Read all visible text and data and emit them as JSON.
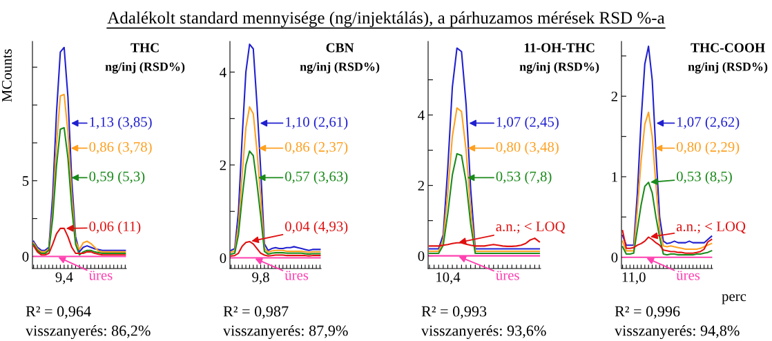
{
  "chart_data": [
    {
      "type": "line",
      "title": "THC",
      "subtitle": "ng/inj (RSD%)",
      "ylabel": "MCounts",
      "legend": "right",
      "ylim": [
        -0.8,
        14.2
      ],
      "yticks": [
        0,
        {
          "value": 2.5,
          "label": null
        },
        5,
        {
          "value": 7.5,
          "label": null
        },
        {
          "value": 10,
          "label": null
        },
        {
          "value": 12.5,
          "label": null
        }
      ],
      "categories": [
        null,
        null,
        null,
        null,
        null,
        null,
        null,
        null,
        "9,4",
        null,
        null,
        null,
        null,
        null,
        null,
        null,
        null,
        null,
        null,
        null,
        null,
        null,
        null,
        null,
        null
      ],
      "series": [
        {
          "name": "1,13 (3,85)",
          "color": "#2020d0",
          "values": [
            1.0,
            0.6,
            0.4,
            0.4,
            0.6,
            4,
            9.5,
            13.5,
            13.8,
            10.5,
            5,
            1.3,
            0.3,
            0.6,
            0.7,
            0.6,
            0.5,
            0.45,
            0.4,
            0.4,
            0.4,
            0.4,
            0.4,
            0.4,
            0.4
          ]
        },
        {
          "name": "0,86 (3,78)",
          "color": "#ffa020",
          "values": [
            0.9,
            0.5,
            0.3,
            0.3,
            0.5,
            3,
            7.4,
            10.6,
            10.7,
            8.2,
            4,
            1,
            0.45,
            0.9,
            1.0,
            0.85,
            0.6,
            0.35,
            0.3,
            0.3,
            0.3,
            0.3,
            0.3,
            0.3,
            0.3
          ]
        },
        {
          "name": "0,59 (5,3)",
          "color": "#1a8a1a",
          "values": [
            0.8,
            0.4,
            0.2,
            0.2,
            0.4,
            2.5,
            6,
            8.4,
            8.5,
            6.5,
            3.2,
            0.8,
            0.1,
            0.3,
            0.4,
            0.4,
            0.3,
            0.25,
            0.2,
            0.2,
            0.2,
            0.2,
            0.2,
            0.2,
            0.2
          ]
        },
        {
          "name": "0,06 (11)",
          "color": "#e01010",
          "values": [
            0.7,
            0.3,
            0.1,
            0.1,
            0.2,
            0.8,
            1.5,
            1.85,
            1.85,
            1.3,
            0.6,
            0.2,
            0.2,
            0.2,
            0.3,
            0.3,
            0.2,
            0.15,
            0.1,
            0.1,
            0.1,
            0.1,
            0.1,
            0.1,
            0.1
          ]
        },
        {
          "name": "üres",
          "color": "#ff40b0",
          "values": [
            0,
            0,
            0,
            0,
            0,
            0,
            0,
            0,
            0,
            0,
            0,
            0,
            0,
            0,
            0,
            0,
            0,
            0,
            0,
            0,
            0,
            0,
            0,
            0,
            0
          ]
        }
      ],
      "annotations": [
        "Adalékolt standard mennyisége (ng/injektálás), a párhuzamos mérések RSD %-a",
        "R² = 0,964",
        "visszanyerés: 86,2%"
      ]
    },
    {
      "type": "line",
      "title": "CBN",
      "subtitle": "ng/inj (RSD%)",
      "legend": "right",
      "ylim": [
        -0.23,
        4.66
      ],
      "yticks": [
        0,
        {
          "value": 1,
          "label": null
        },
        2,
        {
          "value": 3,
          "label": null
        },
        4
      ],
      "categories": [
        null,
        null,
        null,
        null,
        null,
        null,
        null,
        null,
        "9,8",
        null,
        null,
        null,
        null,
        null,
        null,
        null,
        null,
        null,
        null,
        null,
        null,
        null,
        null,
        null,
        null
      ],
      "series": [
        {
          "name": "1,10 (2,61)",
          "color": "#2020d0",
          "values": [
            0.16,
            0.2,
            1.0,
            2.6,
            4.0,
            4.6,
            4.5,
            3.3,
            1.9,
            0.3,
            0.16,
            0.2,
            0.22,
            0.2,
            0.2,
            0.22,
            0.22,
            0.24,
            0.22,
            0.2,
            0.18,
            0.16,
            0.18,
            0.18,
            0.18
          ]
        },
        {
          "name": "0,86 (2,37)",
          "color": "#ffa020",
          "values": [
            0.12,
            0.15,
            0.7,
            1.8,
            2.8,
            3.25,
            3.1,
            2.3,
            1.3,
            0.2,
            0.12,
            0.15,
            0.16,
            0.16,
            0.16,
            0.14,
            0.14,
            0.14,
            0.14,
            0.14,
            0.13,
            0.12,
            0.13,
            0.13,
            0.13
          ]
        },
        {
          "name": "0,57 (3,63)",
          "color": "#1a8a1a",
          "values": [
            0.08,
            0.1,
            0.5,
            1.3,
            2.0,
            2.3,
            2.2,
            1.6,
            0.9,
            0.14,
            0.08,
            0.1,
            0.11,
            0.11,
            0.11,
            0.1,
            0.1,
            0.1,
            0.1,
            0.1,
            0.09,
            0.08,
            0.09,
            0.09,
            0.09
          ]
        },
        {
          "name": "0,04 (4,93)",
          "color": "#e01010",
          "values": [
            0.04,
            0.05,
            0.1,
            0.25,
            0.33,
            0.35,
            0.3,
            0.2,
            0.1,
            0.06,
            0.04,
            0.05,
            0.06,
            0.06,
            0.06,
            0.05,
            0.05,
            0.05,
            0.05,
            0.05,
            0.05,
            0.04,
            0.05,
            0.05,
            0.05
          ]
        },
        {
          "name": "üres",
          "color": "#ff40b0",
          "values": [
            0,
            0,
            0,
            0,
            0,
            0,
            0,
            0,
            0,
            0,
            0,
            0,
            0,
            0,
            0,
            0,
            0,
            0,
            0,
            0,
            0,
            0,
            0,
            0,
            0
          ]
        }
      ],
      "annotations": [
        "R² = 0,987",
        "visszanyerés: 87,9%"
      ]
    },
    {
      "type": "line",
      "title": "11-OH-THC",
      "subtitle": "ng/inj (RSD%)",
      "legend": "right",
      "ylim": [
        -0.36,
        6.09
      ],
      "yticks": [
        0,
        {
          "value": 1,
          "label": null
        },
        2,
        {
          "value": 3,
          "label": null
        },
        4,
        {
          "value": 5,
          "label": null
        }
      ],
      "categories": [
        null,
        null,
        null,
        null,
        "10,4",
        null,
        null,
        null,
        null,
        null,
        null,
        null,
        null,
        null,
        null,
        null,
        null,
        null,
        null,
        null,
        null,
        null,
        null,
        null,
        null
      ],
      "series": [
        {
          "name": "1,07 (2,45)",
          "color": "#2020d0",
          "values": [
            0.2,
            0.2,
            0.2,
            0.6,
            2.5,
            4.8,
            5.9,
            5.8,
            4.3,
            1.9,
            0.2,
            0.2,
            0.2,
            0.2,
            0.2,
            0.2,
            0.2,
            0.2,
            0.2,
            0.2,
            0.2,
            0.2,
            0.2,
            0.2,
            0.2
          ]
        },
        {
          "name": "0,80 (3,48)",
          "color": "#ffa020",
          "values": [
            0.13,
            0.13,
            0.13,
            0.45,
            1.8,
            3.4,
            4.2,
            4.1,
            3.0,
            1.3,
            0.13,
            0.13,
            0.13,
            0.13,
            0.13,
            0.13,
            0.13,
            0.13,
            0.13,
            0.13,
            0.13,
            0.13,
            0.13,
            0.13,
            0.13
          ]
        },
        {
          "name": "0,53 (7,8)",
          "color": "#1a8a1a",
          "values": [
            0.07,
            0.07,
            0.07,
            0.3,
            1.2,
            2.3,
            2.9,
            2.85,
            2.1,
            0.9,
            0.07,
            0.07,
            0.07,
            0.07,
            0.07,
            0.07,
            0.07,
            0.07,
            0.07,
            0.07,
            0.07,
            0.07,
            0.07,
            0.07,
            0.07
          ]
        },
        {
          "name": "a.n.; < LOQ",
          "color": "#e01010",
          "values": [
            0.28,
            0.28,
            0.28,
            0.3,
            0.32,
            0.35,
            0.37,
            0.37,
            0.33,
            0.3,
            0.28,
            0.28,
            0.28,
            0.3,
            0.32,
            0.3,
            0.28,
            0.27,
            0.27,
            0.28,
            0.3,
            0.35,
            0.45,
            0.5,
            0.4
          ]
        },
        {
          "name": "üres",
          "color": "#ff40b0",
          "values": [
            0,
            0,
            0,
            0,
            0,
            0,
            0,
            0,
            0,
            0,
            0,
            0,
            0,
            0,
            0,
            0,
            0,
            0,
            0,
            0,
            0,
            0,
            0,
            0,
            0
          ]
        }
      ],
      "annotations": [
        "R² = 0,993",
        "visszanyerés: 93,6%"
      ]
    },
    {
      "type": "line",
      "title": "THC-COOH",
      "subtitle": "ng/inj (RSD%)",
      "xlabel": "perc",
      "legend": "right",
      "ylim": [
        -0.14,
        2.68
      ],
      "yticks": [
        0,
        {
          "value": 0.5,
          "label": null
        },
        1,
        {
          "value": 1.5,
          "label": null
        },
        2,
        {
          "value": 2.5,
          "label": null
        }
      ],
      "categories": [
        null,
        null,
        null,
        "11,0",
        null,
        null,
        null,
        null,
        null,
        null,
        null,
        null,
        null,
        null,
        null,
        null,
        null,
        null,
        null,
        null,
        null,
        null,
        null,
        null,
        null
      ],
      "series": [
        {
          "name": "1,07 (2,62)",
          "color": "#2020d0",
          "values": [
            0.27,
            0.15,
            0.15,
            0.15,
            0.8,
            1.7,
            2.4,
            2.62,
            2.2,
            1.3,
            0.5,
            0.2,
            0.17,
            0.18,
            0.2,
            0.18,
            0.18,
            0.18,
            0.2,
            0.18,
            0.18,
            0.18,
            0.18,
            0.22,
            0.26
          ]
        },
        {
          "name": "0,80 (2,29)",
          "color": "#ffa020",
          "values": [
            0.2,
            0.08,
            0.08,
            0.08,
            0.6,
            1.2,
            1.65,
            1.8,
            1.5,
            0.9,
            0.35,
            0.14,
            0.13,
            0.14,
            0.13,
            0.12,
            0.11,
            0.1,
            0.1,
            0.1,
            0.1,
            0.11,
            0.13,
            0.15,
            0.17
          ]
        },
        {
          "name": "0,53 (8,5)",
          "color": "#1a8a1a",
          "values": [
            0.13,
            0.04,
            0.04,
            0.05,
            0.35,
            0.65,
            0.88,
            0.93,
            0.8,
            0.5,
            0.25,
            0.04,
            0.03,
            0.04,
            0.04,
            0.03,
            0.03,
            0.03,
            0.03,
            0.03,
            0.04,
            0.04,
            0.05,
            0.06,
            0.08
          ]
        },
        {
          "name": "a.n.; < LOQ",
          "color": "#e01010",
          "values": [
            0.33,
            0.11,
            0.11,
            0.12,
            0.15,
            0.17,
            0.2,
            0.25,
            0.22,
            0.18,
            0.15,
            0.09,
            0.08,
            0.07,
            0.07,
            0.06,
            0.06,
            0.05,
            0.05,
            0.05,
            0.06,
            0.07,
            0.1,
            0.19,
            0.22
          ]
        },
        {
          "name": "üres",
          "color": "#ff40b0",
          "values": [
            0,
            0,
            0,
            0,
            0,
            0,
            0,
            0,
            0,
            0,
            0,
            0,
            0,
            0,
            0,
            0,
            0,
            0,
            0,
            0,
            0,
            0,
            0,
            0,
            0
          ]
        }
      ],
      "annotations": [
        "R² = 0,996",
        "visszanyerés: 94,8%"
      ]
    }
  ]
}
